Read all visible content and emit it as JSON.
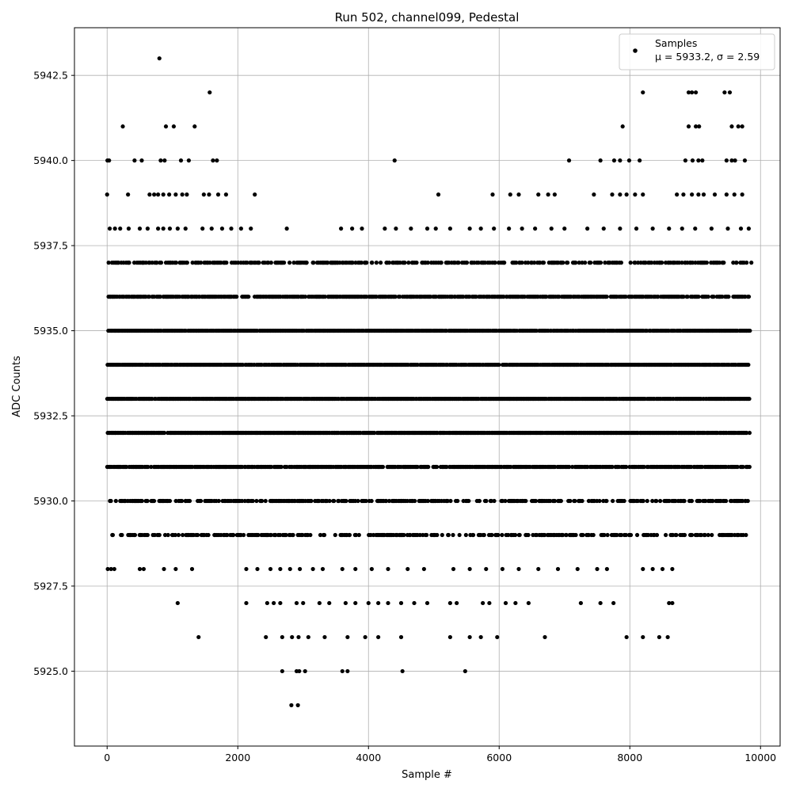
{
  "chart_data": {
    "type": "scatter",
    "title": "Run 502, channel099, Pedestal",
    "xlabel": "Sample #",
    "ylabel": "ADC Counts",
    "xlim": [
      -500,
      10300
    ],
    "ylim": [
      5922.8,
      5943.9
    ],
    "x_ticks": [
      0,
      2000,
      4000,
      6000,
      8000,
      10000
    ],
    "x_tick_labels": [
      "0",
      "2000",
      "4000",
      "6000",
      "8000",
      "10000"
    ],
    "y_ticks": [
      5925.0,
      5927.5,
      5930.0,
      5932.5,
      5935.0,
      5937.5,
      5940.0,
      5942.5
    ],
    "y_tick_labels": [
      "5925.0",
      "5927.5",
      "5930.0",
      "5932.5",
      "5935.0",
      "5937.5",
      "5940.0",
      "5942.5"
    ],
    "grid": true,
    "legend_position": "top-right",
    "series": [
      {
        "name": "Samples",
        "color": "#000000",
        "marker": "circle",
        "n_samples": 9840,
        "band_min": 5929,
        "band_max": 5937,
        "points": [
          {
            "x": 800,
            "y": 5943
          },
          {
            "x": 1570,
            "y": 5942
          },
          {
            "x": 8200,
            "y": 5942
          },
          {
            "x": 8900,
            "y": 5942
          },
          {
            "x": 8950,
            "y": 5942
          },
          {
            "x": 9010,
            "y": 5942
          },
          {
            "x": 9450,
            "y": 5942
          },
          {
            "x": 9530,
            "y": 5942
          },
          {
            "x": 240,
            "y": 5941
          },
          {
            "x": 900,
            "y": 5941
          },
          {
            "x": 1020,
            "y": 5941
          },
          {
            "x": 1340,
            "y": 5941
          },
          {
            "x": 7890,
            "y": 5941
          },
          {
            "x": 8900,
            "y": 5941
          },
          {
            "x": 9010,
            "y": 5941
          },
          {
            "x": 9060,
            "y": 5941
          },
          {
            "x": 9560,
            "y": 5941
          },
          {
            "x": 9660,
            "y": 5941
          },
          {
            "x": 9720,
            "y": 5941
          },
          {
            "x": 5,
            "y": 5940
          },
          {
            "x": 30,
            "y": 5940
          },
          {
            "x": 420,
            "y": 5940
          },
          {
            "x": 530,
            "y": 5940
          },
          {
            "x": 820,
            "y": 5940
          },
          {
            "x": 880,
            "y": 5940
          },
          {
            "x": 1130,
            "y": 5940
          },
          {
            "x": 1250,
            "y": 5940
          },
          {
            "x": 1620,
            "y": 5940
          },
          {
            "x": 1680,
            "y": 5940
          },
          {
            "x": 4400,
            "y": 5940
          },
          {
            "x": 7070,
            "y": 5940
          },
          {
            "x": 7550,
            "y": 5940
          },
          {
            "x": 7760,
            "y": 5940
          },
          {
            "x": 7850,
            "y": 5940
          },
          {
            "x": 7990,
            "y": 5940
          },
          {
            "x": 8150,
            "y": 5940
          },
          {
            "x": 8850,
            "y": 5940
          },
          {
            "x": 8960,
            "y": 5940
          },
          {
            "x": 9050,
            "y": 5940
          },
          {
            "x": 9110,
            "y": 5940
          },
          {
            "x": 9480,
            "y": 5940
          },
          {
            "x": 9560,
            "y": 5940
          },
          {
            "x": 9610,
            "y": 5940
          },
          {
            "x": 9760,
            "y": 5940
          },
          {
            "x": 0,
            "y": 5939
          },
          {
            "x": 320,
            "y": 5939
          },
          {
            "x": 650,
            "y": 5939
          },
          {
            "x": 720,
            "y": 5939
          },
          {
            "x": 780,
            "y": 5939
          },
          {
            "x": 860,
            "y": 5939
          },
          {
            "x": 950,
            "y": 5939
          },
          {
            "x": 1050,
            "y": 5939
          },
          {
            "x": 1150,
            "y": 5939
          },
          {
            "x": 1220,
            "y": 5939
          },
          {
            "x": 1480,
            "y": 5939
          },
          {
            "x": 1560,
            "y": 5939
          },
          {
            "x": 1700,
            "y": 5939
          },
          {
            "x": 1820,
            "y": 5939
          },
          {
            "x": 2260,
            "y": 5939
          },
          {
            "x": 5070,
            "y": 5939
          },
          {
            "x": 5900,
            "y": 5939
          },
          {
            "x": 6170,
            "y": 5939
          },
          {
            "x": 6300,
            "y": 5939
          },
          {
            "x": 6600,
            "y": 5939
          },
          {
            "x": 6750,
            "y": 5939
          },
          {
            "x": 6850,
            "y": 5939
          },
          {
            "x": 7450,
            "y": 5939
          },
          {
            "x": 7730,
            "y": 5939
          },
          {
            "x": 7850,
            "y": 5939
          },
          {
            "x": 7950,
            "y": 5939
          },
          {
            "x": 8080,
            "y": 5939
          },
          {
            "x": 8200,
            "y": 5939
          },
          {
            "x": 8720,
            "y": 5939
          },
          {
            "x": 8820,
            "y": 5939
          },
          {
            "x": 8950,
            "y": 5939
          },
          {
            "x": 9050,
            "y": 5939
          },
          {
            "x": 9130,
            "y": 5939
          },
          {
            "x": 9300,
            "y": 5939
          },
          {
            "x": 9480,
            "y": 5939
          },
          {
            "x": 9600,
            "y": 5939
          },
          {
            "x": 9720,
            "y": 5939
          },
          {
            "x": 40,
            "y": 5938
          },
          {
            "x": 120,
            "y": 5938
          },
          {
            "x": 200,
            "y": 5938
          },
          {
            "x": 330,
            "y": 5938
          },
          {
            "x": 500,
            "y": 5938
          },
          {
            "x": 620,
            "y": 5938
          },
          {
            "x": 780,
            "y": 5938
          },
          {
            "x": 860,
            "y": 5938
          },
          {
            "x": 960,
            "y": 5938
          },
          {
            "x": 1080,
            "y": 5938
          },
          {
            "x": 1200,
            "y": 5938
          },
          {
            "x": 1460,
            "y": 5938
          },
          {
            "x": 1600,
            "y": 5938
          },
          {
            "x": 1760,
            "y": 5938
          },
          {
            "x": 1900,
            "y": 5938
          },
          {
            "x": 2050,
            "y": 5938
          },
          {
            "x": 2200,
            "y": 5938
          },
          {
            "x": 2750,
            "y": 5938
          },
          {
            "x": 3580,
            "y": 5938
          },
          {
            "x": 3750,
            "y": 5938
          },
          {
            "x": 3900,
            "y": 5938
          },
          {
            "x": 4250,
            "y": 5938
          },
          {
            "x": 4420,
            "y": 5938
          },
          {
            "x": 4650,
            "y": 5938
          },
          {
            "x": 4900,
            "y": 5938
          },
          {
            "x": 5030,
            "y": 5938
          },
          {
            "x": 5250,
            "y": 5938
          },
          {
            "x": 5550,
            "y": 5938
          },
          {
            "x": 5720,
            "y": 5938
          },
          {
            "x": 5920,
            "y": 5938
          },
          {
            "x": 6150,
            "y": 5938
          },
          {
            "x": 6350,
            "y": 5938
          },
          {
            "x": 6550,
            "y": 5938
          },
          {
            "x": 6800,
            "y": 5938
          },
          {
            "x": 7000,
            "y": 5938
          },
          {
            "x": 7350,
            "y": 5938
          },
          {
            "x": 7600,
            "y": 5938
          },
          {
            "x": 7850,
            "y": 5938
          },
          {
            "x": 8100,
            "y": 5938
          },
          {
            "x": 8350,
            "y": 5938
          },
          {
            "x": 8600,
            "y": 5938
          },
          {
            "x": 8800,
            "y": 5938
          },
          {
            "x": 9000,
            "y": 5938
          },
          {
            "x": 9250,
            "y": 5938
          },
          {
            "x": 9500,
            "y": 5938
          },
          {
            "x": 9700,
            "y": 5938
          },
          {
            "x": 9820,
            "y": 5938
          },
          {
            "x": 3050,
            "y": 5937
          },
          {
            "x": 3150,
            "y": 5937
          },
          {
            "x": 3450,
            "y": 5937
          },
          {
            "x": 3950,
            "y": 5937
          },
          {
            "x": 4050,
            "y": 5937
          },
          {
            "x": 9860,
            "y": 5937
          },
          {
            "x": 2130,
            "y": 5928
          },
          {
            "x": 2300,
            "y": 5928
          },
          {
            "x": 2500,
            "y": 5928
          },
          {
            "x": 2650,
            "y": 5928
          },
          {
            "x": 2800,
            "y": 5928
          },
          {
            "x": 2950,
            "y": 5928
          },
          {
            "x": 3150,
            "y": 5928
          },
          {
            "x": 3300,
            "y": 5928
          },
          {
            "x": 3600,
            "y": 5928
          },
          {
            "x": 3800,
            "y": 5928
          },
          {
            "x": 4050,
            "y": 5928
          },
          {
            "x": 4300,
            "y": 5928
          },
          {
            "x": 4600,
            "y": 5928
          },
          {
            "x": 4850,
            "y": 5928
          },
          {
            "x": 5300,
            "y": 5928
          },
          {
            "x": 5550,
            "y": 5928
          },
          {
            "x": 5800,
            "y": 5928
          },
          {
            "x": 6050,
            "y": 5928
          },
          {
            "x": 6300,
            "y": 5928
          },
          {
            "x": 6600,
            "y": 5928
          },
          {
            "x": 6900,
            "y": 5928
          },
          {
            "x": 7200,
            "y": 5928
          },
          {
            "x": 7500,
            "y": 5928
          },
          {
            "x": 7650,
            "y": 5928
          },
          {
            "x": 8200,
            "y": 5928
          },
          {
            "x": 8350,
            "y": 5928
          },
          {
            "x": 8500,
            "y": 5928
          },
          {
            "x": 8650,
            "y": 5928
          },
          {
            "x": 10,
            "y": 5928
          },
          {
            "x": 60,
            "y": 5928
          },
          {
            "x": 110,
            "y": 5928
          },
          {
            "x": 500,
            "y": 5928
          },
          {
            "x": 560,
            "y": 5928
          },
          {
            "x": 870,
            "y": 5928
          },
          {
            "x": 1050,
            "y": 5928
          },
          {
            "x": 1300,
            "y": 5928
          },
          {
            "x": 1080,
            "y": 5927
          },
          {
            "x": 2130,
            "y": 5927
          },
          {
            "x": 2450,
            "y": 5927
          },
          {
            "x": 2550,
            "y": 5927
          },
          {
            "x": 2650,
            "y": 5927
          },
          {
            "x": 2900,
            "y": 5927
          },
          {
            "x": 3000,
            "y": 5927
          },
          {
            "x": 3250,
            "y": 5927
          },
          {
            "x": 3400,
            "y": 5927
          },
          {
            "x": 3650,
            "y": 5927
          },
          {
            "x": 3800,
            "y": 5927
          },
          {
            "x": 4000,
            "y": 5927
          },
          {
            "x": 4150,
            "y": 5927
          },
          {
            "x": 4300,
            "y": 5927
          },
          {
            "x": 4500,
            "y": 5927
          },
          {
            "x": 4700,
            "y": 5927
          },
          {
            "x": 4900,
            "y": 5927
          },
          {
            "x": 5250,
            "y": 5927
          },
          {
            "x": 5350,
            "y": 5927
          },
          {
            "x": 5750,
            "y": 5927
          },
          {
            "x": 5850,
            "y": 5927
          },
          {
            "x": 6100,
            "y": 5927
          },
          {
            "x": 6250,
            "y": 5927
          },
          {
            "x": 6450,
            "y": 5927
          },
          {
            "x": 7250,
            "y": 5927
          },
          {
            "x": 7550,
            "y": 5927
          },
          {
            "x": 7750,
            "y": 5927
          },
          {
            "x": 8600,
            "y": 5927
          },
          {
            "x": 8650,
            "y": 5927
          },
          {
            "x": 1400,
            "y": 5926
          },
          {
            "x": 2430,
            "y": 5926
          },
          {
            "x": 2680,
            "y": 5926
          },
          {
            "x": 2830,
            "y": 5926
          },
          {
            "x": 2930,
            "y": 5926
          },
          {
            "x": 3080,
            "y": 5926
          },
          {
            "x": 3330,
            "y": 5926
          },
          {
            "x": 3680,
            "y": 5926
          },
          {
            "x": 3950,
            "y": 5926
          },
          {
            "x": 4150,
            "y": 5926
          },
          {
            "x": 4500,
            "y": 5926
          },
          {
            "x": 5250,
            "y": 5926
          },
          {
            "x": 5550,
            "y": 5926
          },
          {
            "x": 5720,
            "y": 5926
          },
          {
            "x": 5970,
            "y": 5926
          },
          {
            "x": 6700,
            "y": 5926
          },
          {
            "x": 7950,
            "y": 5926
          },
          {
            "x": 8200,
            "y": 5926
          },
          {
            "x": 8450,
            "y": 5926
          },
          {
            "x": 8580,
            "y": 5926
          },
          {
            "x": 2680,
            "y": 5925
          },
          {
            "x": 2900,
            "y": 5925
          },
          {
            "x": 2940,
            "y": 5925
          },
          {
            "x": 3030,
            "y": 5925
          },
          {
            "x": 3600,
            "y": 5925
          },
          {
            "x": 3680,
            "y": 5925
          },
          {
            "x": 4520,
            "y": 5925
          },
          {
            "x": 5480,
            "y": 5925
          },
          {
            "x": 2820,
            "y": 5924
          },
          {
            "x": 2920,
            "y": 5924
          }
        ]
      }
    ],
    "legend": {
      "entries": [
        {
          "line1": "Samples",
          "line2": "μ = 5933.2, σ = 2.59"
        }
      ]
    }
  }
}
